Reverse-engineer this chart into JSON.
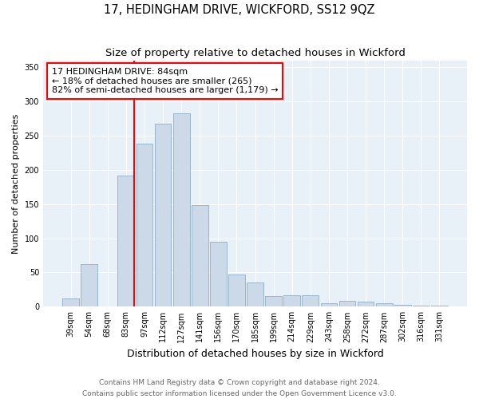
{
  "title": "17, HEDINGHAM DRIVE, WICKFORD, SS12 9QZ",
  "subtitle": "Size of property relative to detached houses in Wickford",
  "xlabel": "Distribution of detached houses by size in Wickford",
  "ylabel": "Number of detached properties",
  "categories": [
    "39sqm",
    "54sqm",
    "68sqm",
    "83sqm",
    "97sqm",
    "112sqm",
    "127sqm",
    "141sqm",
    "156sqm",
    "170sqm",
    "185sqm",
    "199sqm",
    "214sqm",
    "229sqm",
    "243sqm",
    "258sqm",
    "272sqm",
    "287sqm",
    "302sqm",
    "316sqm",
    "331sqm"
  ],
  "values": [
    12,
    62,
    0,
    192,
    238,
    267,
    283,
    148,
    95,
    47,
    35,
    15,
    17,
    17,
    5,
    8,
    7,
    5,
    3,
    1,
    2
  ],
  "bar_color": "#ccd9e8",
  "bar_edge_color": "#9ab5cc",
  "red_line_x": 3.425,
  "annotation_box_text": "17 HEDINGHAM DRIVE: 84sqm\n← 18% of detached houses are smaller (265)\n82% of semi-detached houses are larger (1,179) →",
  "annotation_box_color": "#ffffff",
  "annotation_box_edge_color": "red",
  "footnote1": "Contains HM Land Registry data © Crown copyright and database right 2024.",
  "footnote2": "Contains public sector information licensed under the Open Government Licence v3.0.",
  "ylim": [
    0,
    360
  ],
  "yticks": [
    0,
    50,
    100,
    150,
    200,
    250,
    300,
    350
  ],
  "plot_bg_color": "#e8f0f8",
  "title_fontsize": 10.5,
  "subtitle_fontsize": 9.5,
  "xlabel_fontsize": 9,
  "ylabel_fontsize": 8,
  "tick_fontsize": 7,
  "annotation_fontsize": 8,
  "footnote_fontsize": 6.5
}
